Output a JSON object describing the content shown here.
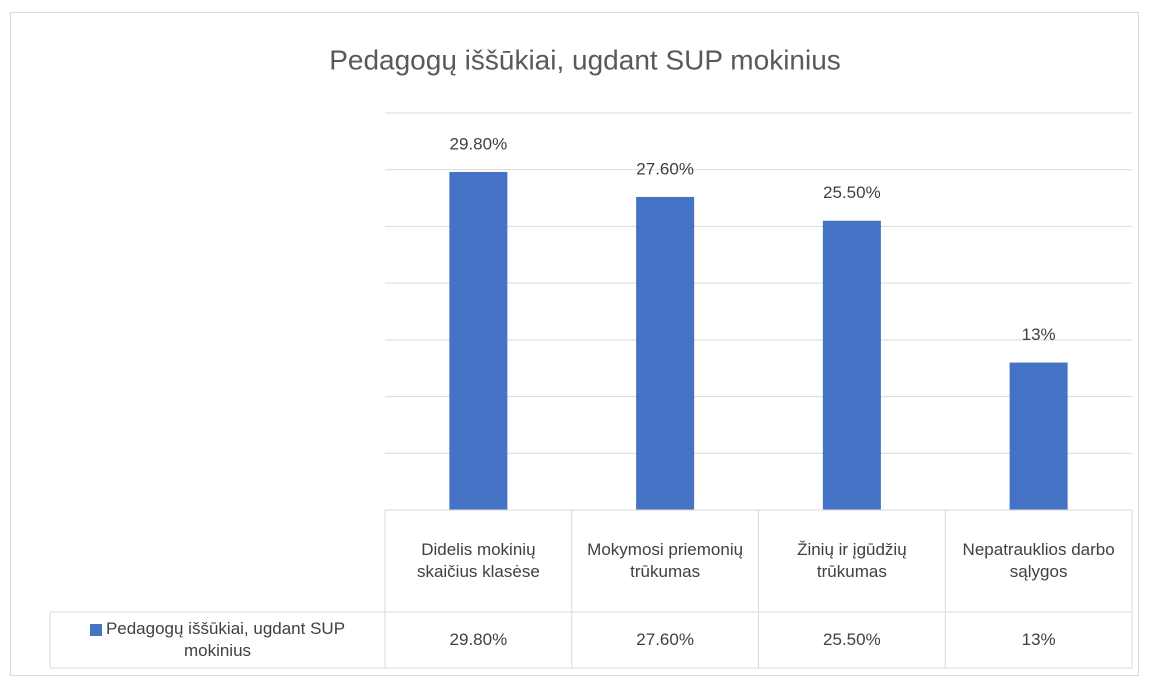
{
  "chart_data": {
    "type": "bar",
    "title": "Pedagogų iššūkiai, ugdant SUP mokinius",
    "categories": [
      "Didelis mokinių skaičius klasėse",
      "Mokymosi priemonių trūkumas",
      "Žinių ir įgūdžių trūkumas",
      "Nepatrauklios darbo sąlygos"
    ],
    "series": [
      {
        "name": "Pedagogų iššūkiai, ugdant SUP mokinius",
        "color": "#4472c4",
        "values": [
          29.8,
          27.6,
          25.5,
          13
        ],
        "value_labels": [
          "29.80%",
          "27.60%",
          "25.50%",
          "13%"
        ]
      }
    ],
    "ylim": [
      0,
      35
    ],
    "yticks": [
      0,
      5,
      10,
      15,
      20,
      25,
      30,
      35
    ],
    "grid": true,
    "data_table": true
  }
}
